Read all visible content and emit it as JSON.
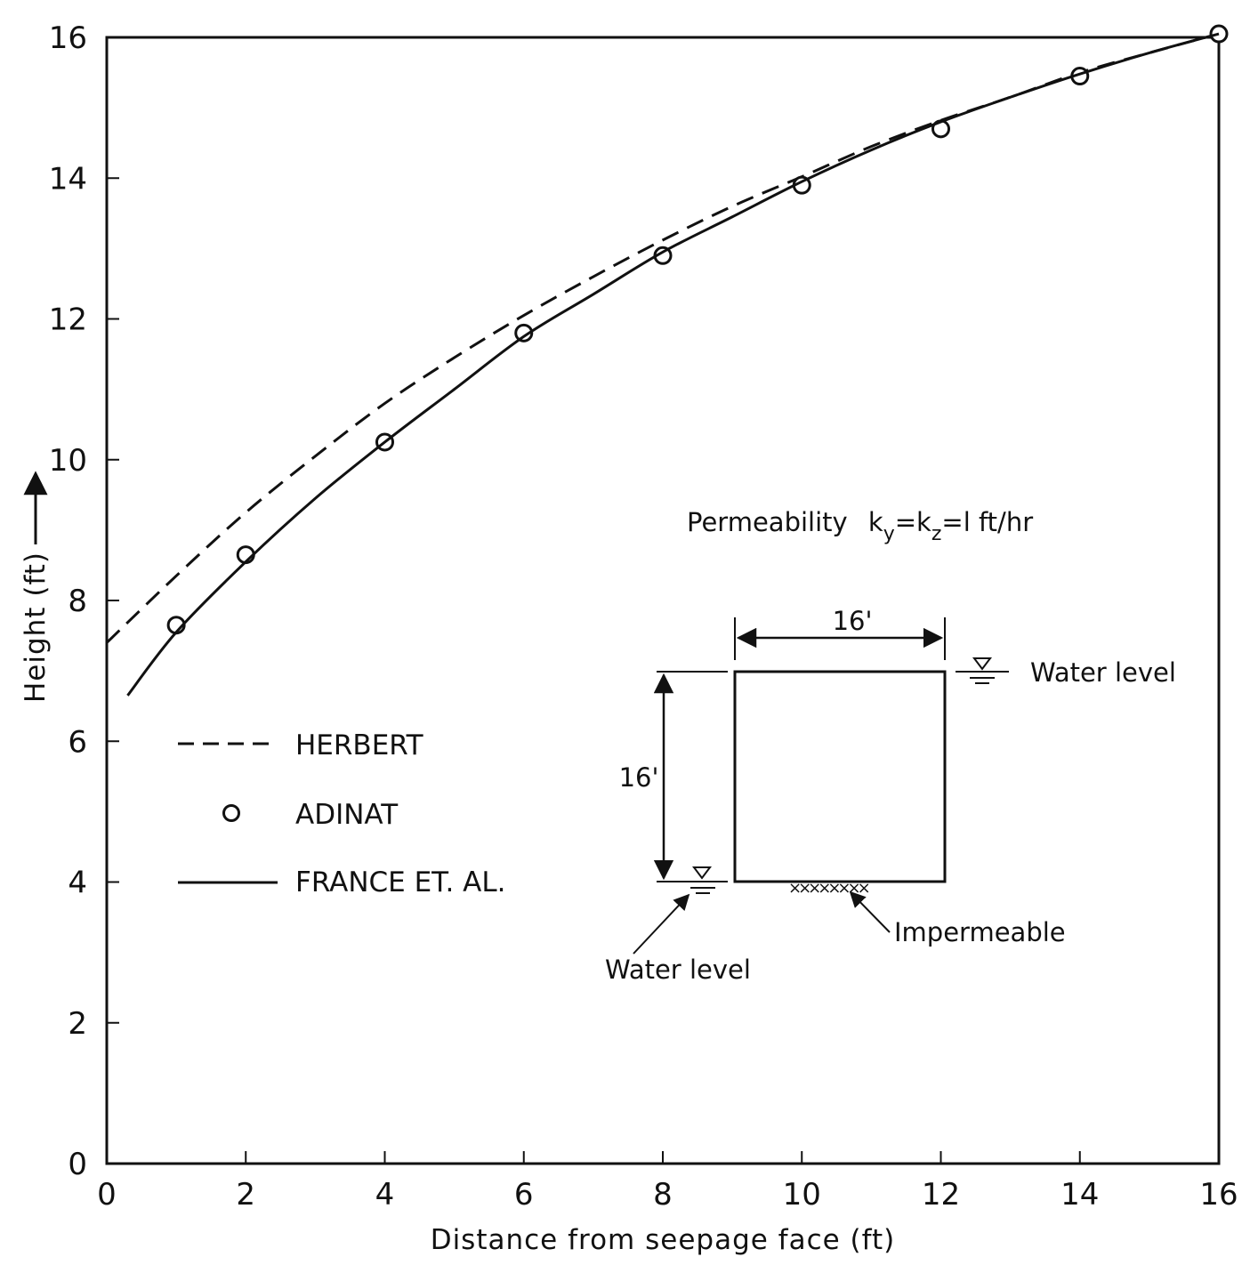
{
  "chart_data": {
    "type": "line",
    "xlabel": "Distance from seepage face (ft)",
    "ylabel": "Height (ft)",
    "xlim": [
      0,
      16
    ],
    "ylim": [
      0,
      16
    ],
    "xticks": [
      "0",
      "2",
      "4",
      "6",
      "8",
      "10",
      "12",
      "14",
      "16"
    ],
    "yticks": [
      "0",
      "2",
      "4",
      "6",
      "8",
      "10",
      "12",
      "14",
      "16"
    ],
    "grid": false,
    "legend_position": "left",
    "series": [
      {
        "name": "HERBERT",
        "style": "dashed",
        "x": [
          0,
          1,
          2,
          3,
          4,
          5,
          6,
          7,
          8,
          9,
          10,
          11,
          12,
          13,
          14,
          15,
          16
        ],
        "y": [
          7.4,
          8.35,
          9.25,
          10.05,
          10.8,
          11.45,
          12.05,
          12.6,
          13.12,
          13.6,
          14.02,
          14.45,
          14.82,
          15.15,
          15.5,
          15.78,
          16.05
        ]
      },
      {
        "name": "ADINAT",
        "style": "markers",
        "x": [
          1,
          2,
          4,
          6,
          8,
          10,
          12,
          14,
          16
        ],
        "y": [
          7.65,
          8.65,
          10.25,
          11.8,
          12.9,
          13.9,
          14.7,
          15.45,
          16.05
        ]
      },
      {
        "name": "FRANCE ET. AL.",
        "style": "solid",
        "x": [
          0.3,
          1,
          2,
          3,
          4,
          5,
          6,
          7,
          8,
          9,
          10,
          11,
          12,
          13,
          14,
          15,
          16
        ],
        "y": [
          6.65,
          7.55,
          8.55,
          9.45,
          10.25,
          11.0,
          11.75,
          12.35,
          12.95,
          13.45,
          13.95,
          14.4,
          14.8,
          15.15,
          15.48,
          15.78,
          16.05
        ]
      }
    ],
    "annotations": {
      "permeability": {
        "prefix": "Permeability",
        "k": "k",
        "sub_y": "y",
        "sub_z": "z",
        "equals": "=",
        "value": "=l ft/hr"
      },
      "width_label": "16'",
      "height_label": "16'",
      "water_level_top": "Water level",
      "water_level_bottom": "Water level",
      "impermeable": "Impermeable"
    }
  }
}
